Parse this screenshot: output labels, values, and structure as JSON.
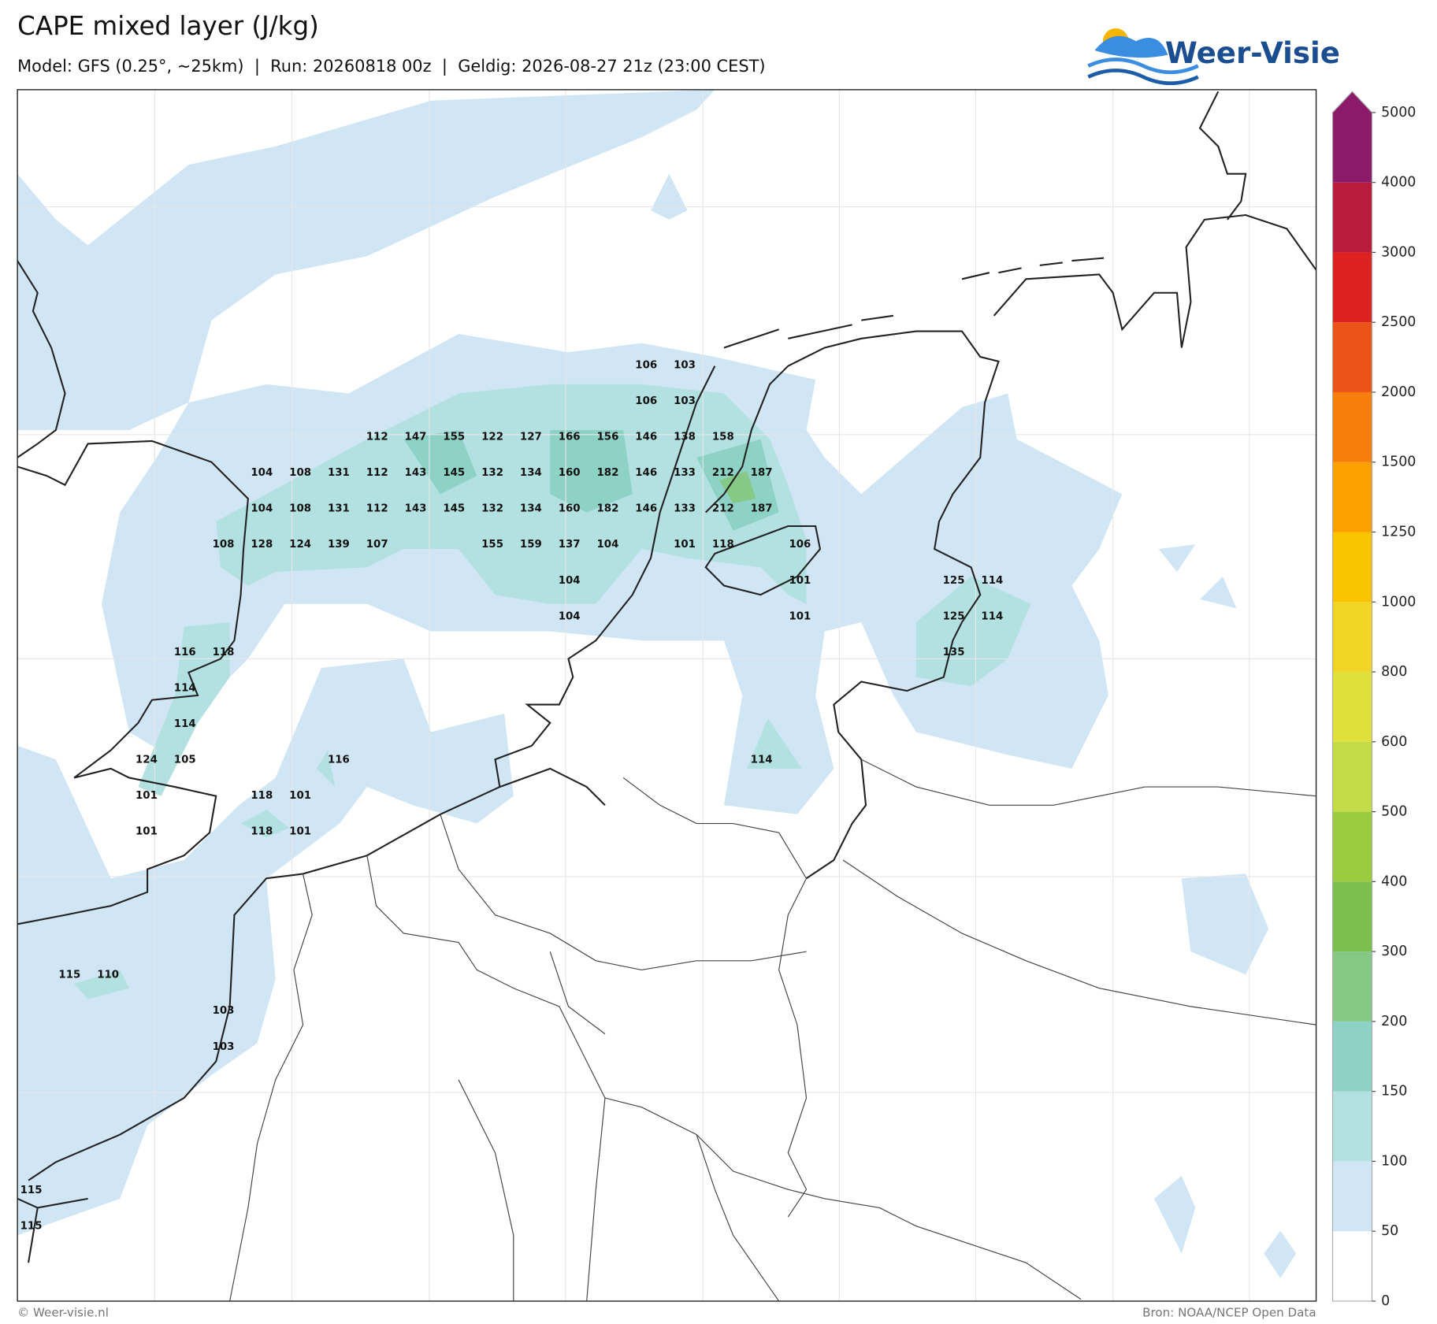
{
  "header": {
    "title": "CAPE mixed layer (J/kg)",
    "subtitle": "Model: GFS (0.25°, ~25km)  |  Run: 20260818 00z  |  Geldig: 2026-08-27 21z (23:00 CEST)",
    "logo": "Weer-Visie"
  },
  "colorbar": {
    "ticks": [
      0,
      50,
      100,
      150,
      200,
      300,
      400,
      500,
      600,
      800,
      1000,
      1250,
      1500,
      2000,
      2500,
      3000,
      4000,
      5000
    ],
    "colors": [
      "#ffffff",
      "#d0e6f5",
      "#b3e0e0",
      "#8ed2c6",
      "#86c987",
      "#7bc04f",
      "#9bcc40",
      "#c4dc48",
      "#dfe039",
      "#f0d526",
      "#fbc400",
      "#fba200",
      "#f77e0a",
      "#ec5316",
      "#dd2020",
      "#b81b3b",
      "#8b1a6b"
    ]
  },
  "map": {
    "labels": [
      106,
      103,
      106,
      103,
      112,
      147,
      155,
      122,
      127,
      166,
      156,
      146,
      138,
      158,
      104,
      108,
      131,
      112,
      143,
      145,
      132,
      134,
      160,
      182,
      146,
      133,
      212,
      187,
      104,
      108,
      131,
      112,
      143,
      145,
      132,
      134,
      160,
      182,
      146,
      133,
      212,
      187,
      108,
      128,
      124,
      139,
      107,
      155,
      159,
      137,
      104,
      101,
      118,
      106,
      104,
      101,
      125,
      114,
      104,
      101,
      125,
      114,
      116,
      118,
      135,
      114,
      114,
      124,
      105,
      116,
      114,
      101,
      118,
      101,
      101,
      118,
      101,
      115,
      110,
      103,
      103,
      115,
      115
    ]
  },
  "footer": {
    "left": "© Weer-visie.nl",
    "right": "Bron: NOAA/NCEP Open Data"
  }
}
